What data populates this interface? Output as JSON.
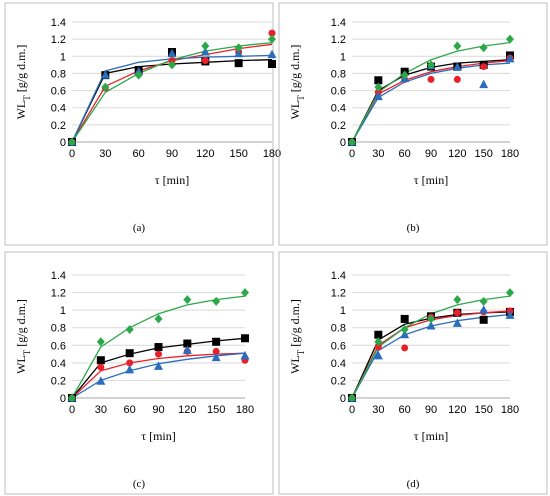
{
  "chart_data": [
    {
      "type": "scatter",
      "caption": "(a)",
      "ylabel_main": "WL",
      "ylabel_sub": "T",
      "ylabel_unit": " [g/g d.m.]",
      "xlabel": "τ [min]",
      "xticks": [
        "0",
        "30",
        "60",
        "90",
        "120",
        "150",
        "180"
      ],
      "yticks": [
        "0",
        "0.2",
        "0.4",
        "0.6",
        "0.8",
        "1",
        "1.2",
        "1.4"
      ],
      "xlim": [
        0,
        180
      ],
      "ylim": [
        0,
        1.4
      ],
      "series": [
        {
          "marker": "square",
          "color": "#000000",
          "x": [
            0,
            30,
            60,
            90,
            120,
            150,
            180
          ],
          "points": [
            0,
            0.78,
            0.84,
            1.05,
            0.94,
            0.92,
            0.91
          ],
          "fit": [
            0,
            0.8,
            0.88,
            0.91,
            0.93,
            0.95,
            0.96
          ]
        },
        {
          "marker": "circle",
          "color": "#e8202a",
          "x": [
            0,
            30,
            60,
            90,
            120,
            150,
            180
          ],
          "points": [
            0,
            0.63,
            0.8,
            0.95,
            0.95,
            1.05,
            1.27
          ],
          "fit": [
            0,
            0.65,
            0.83,
            0.95,
            1.02,
            1.09,
            1.14
          ]
        },
        {
          "marker": "triangle",
          "color": "#2a6ebb",
          "x": [
            0,
            30,
            60,
            90,
            120,
            150,
            180
          ],
          "points": [
            0,
            0.78,
            0.82,
            1.03,
            1.05,
            1.03,
            1.02
          ],
          "fit": [
            0,
            0.83,
            0.93,
            0.97,
            0.99,
            1.0,
            1.01
          ]
        },
        {
          "marker": "diamond",
          "color": "#2ca84a",
          "x": [
            0,
            30,
            60,
            90,
            120,
            150,
            180
          ],
          "points": [
            0,
            0.64,
            0.78,
            0.9,
            1.12,
            1.1,
            1.2
          ],
          "fit": [
            0,
            0.58,
            0.8,
            0.96,
            1.06,
            1.12,
            1.16
          ]
        }
      ]
    },
    {
      "type": "scatter",
      "caption": "(b)",
      "ylabel_main": "WL",
      "ylabel_sub": "T",
      "ylabel_unit": " [g/g d.m.]",
      "xlabel": "τ [min]",
      "xticks": [
        "0",
        "30",
        "60",
        "90",
        "120",
        "150",
        "180"
      ],
      "yticks": [
        "0",
        "0.2",
        "0.4",
        "0.6",
        "0.8",
        "1",
        "1.2",
        "1.4"
      ],
      "xlim": [
        0,
        180
      ],
      "ylim": [
        0,
        1.4
      ],
      "series": [
        {
          "marker": "square",
          "color": "#000000",
          "x": [
            0,
            30,
            60,
            90,
            120,
            150,
            180
          ],
          "points": [
            0,
            0.72,
            0.82,
            0.88,
            0.88,
            0.9,
            1.01
          ],
          "fit": [
            0,
            0.6,
            0.78,
            0.87,
            0.92,
            0.94,
            0.96
          ]
        },
        {
          "marker": "circle",
          "color": "#e8202a",
          "x": [
            0,
            30,
            60,
            90,
            120,
            150,
            180
          ],
          "points": [
            0,
            0.58,
            0.73,
            0.73,
            0.73,
            0.88,
            0.98
          ],
          "fit": [
            0,
            0.56,
            0.72,
            0.82,
            0.88,
            0.92,
            0.95
          ]
        },
        {
          "marker": "triangle",
          "color": "#2a6ebb",
          "x": [
            0,
            30,
            60,
            90,
            120,
            150,
            180
          ],
          "points": [
            0,
            0.53,
            0.74,
            0.89,
            0.87,
            0.67,
            0.97
          ],
          "fit": [
            0,
            0.52,
            0.7,
            0.8,
            0.86,
            0.9,
            0.92
          ]
        },
        {
          "marker": "diamond",
          "color": "#2ca84a",
          "x": [
            0,
            30,
            60,
            90,
            120,
            150,
            180
          ],
          "points": [
            0,
            0.64,
            0.78,
            0.9,
            1.12,
            1.1,
            1.2
          ],
          "fit": [
            0,
            0.58,
            0.8,
            0.96,
            1.06,
            1.12,
            1.16
          ]
        }
      ]
    },
    {
      "type": "scatter",
      "caption": "(c)",
      "ylabel_main": "WL",
      "ylabel_sub": "T",
      "ylabel_unit": " [g/g d.m.]",
      "xlabel": "τ [min]",
      "xticks": [
        "0",
        "30",
        "60",
        "90",
        "120",
        "150",
        "180"
      ],
      "yticks": [
        "0",
        "0.2",
        "0.4",
        "0.6",
        "0.8",
        "1",
        "1.2",
        "1.4"
      ],
      "xlim": [
        0,
        180
      ],
      "ylim": [
        0,
        1.4
      ],
      "series": [
        {
          "marker": "square",
          "color": "#000000",
          "x": [
            0,
            30,
            60,
            90,
            120,
            150,
            180
          ],
          "points": [
            0,
            0.43,
            0.51,
            0.58,
            0.62,
            0.64,
            0.68
          ],
          "fit": [
            0,
            0.4,
            0.5,
            0.57,
            0.61,
            0.65,
            0.68
          ]
        },
        {
          "marker": "circle",
          "color": "#e8202a",
          "x": [
            0,
            30,
            60,
            90,
            120,
            150,
            180
          ],
          "points": [
            0,
            0.35,
            0.4,
            0.5,
            0.53,
            0.53,
            0.43
          ],
          "fit": [
            0,
            0.31,
            0.4,
            0.45,
            0.48,
            0.5,
            0.51
          ]
        },
        {
          "marker": "triangle",
          "color": "#2a6ebb",
          "x": [
            0,
            30,
            60,
            90,
            120,
            150,
            180
          ],
          "points": [
            0,
            0.19,
            0.32,
            0.36,
            0.54,
            0.46,
            0.48
          ],
          "fit": [
            0,
            0.2,
            0.31,
            0.39,
            0.44,
            0.48,
            0.51
          ]
        },
        {
          "marker": "diamond",
          "color": "#2ca84a",
          "x": [
            0,
            30,
            60,
            90,
            120,
            150,
            180
          ],
          "points": [
            0,
            0.64,
            0.78,
            0.9,
            1.12,
            1.1,
            1.2
          ],
          "fit": [
            0,
            0.58,
            0.8,
            0.96,
            1.06,
            1.12,
            1.16
          ]
        }
      ]
    },
    {
      "type": "scatter",
      "caption": "(d)",
      "ylabel_main": "WL",
      "ylabel_sub": "T",
      "ylabel_unit": " [g/g d.m.]",
      "xlabel": "τ [min]",
      "xticks": [
        "0",
        "30",
        "60",
        "90",
        "120",
        "150",
        "180"
      ],
      "yticks": [
        "0",
        "0.2",
        "0.4",
        "0.6",
        "0.8",
        "1",
        "1.2",
        "1.4"
      ],
      "xlim": [
        0,
        180
      ],
      "ylim": [
        0,
        1.4
      ],
      "series": [
        {
          "marker": "square",
          "color": "#000000",
          "x": [
            0,
            30,
            60,
            90,
            120,
            150,
            180
          ],
          "points": [
            0,
            0.72,
            0.9,
            0.93,
            0.97,
            0.89,
            0.98
          ],
          "fit": [
            0,
            0.66,
            0.84,
            0.91,
            0.95,
            0.97,
            0.98
          ]
        },
        {
          "marker": "circle",
          "color": "#e8202a",
          "x": [
            0,
            30,
            60,
            90,
            120,
            150,
            180
          ],
          "points": [
            0,
            0.58,
            0.57,
            0.92,
            0.97,
            0.98,
            0.99
          ],
          "fit": [
            0,
            0.6,
            0.8,
            0.89,
            0.94,
            0.97,
            0.99
          ]
        },
        {
          "marker": "triangle",
          "color": "#2a6ebb",
          "x": [
            0,
            30,
            60,
            90,
            120,
            150,
            180
          ],
          "points": [
            0,
            0.48,
            0.72,
            0.82,
            0.85,
            1.0,
            0.94
          ],
          "fit": [
            0,
            0.54,
            0.72,
            0.82,
            0.88,
            0.92,
            0.95
          ]
        },
        {
          "marker": "diamond",
          "color": "#2ca84a",
          "x": [
            0,
            30,
            60,
            90,
            120,
            150,
            180
          ],
          "points": [
            0,
            0.64,
            0.78,
            0.9,
            1.12,
            1.1,
            1.2
          ],
          "fit": [
            0,
            0.58,
            0.8,
            0.96,
            1.06,
            1.12,
            1.16
          ]
        }
      ]
    }
  ]
}
